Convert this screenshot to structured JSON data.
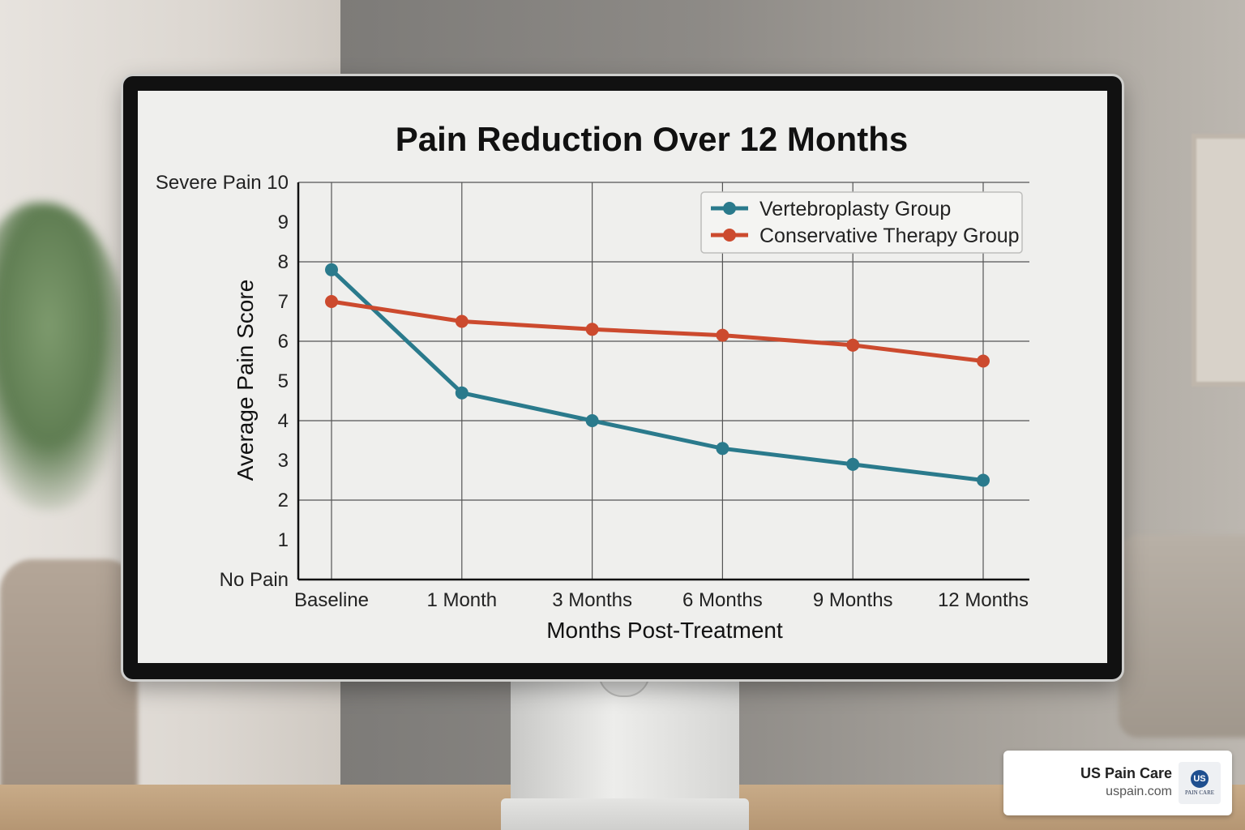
{
  "chart_data": {
    "type": "line",
    "title": "Pain Reduction Over 12 Months",
    "xlabel": "Months Post-Treatment",
    "ylabel": "Average Pain Score",
    "categories": [
      "Baseline",
      "1 Month",
      "3 Months",
      "6 Months",
      "9 Months",
      "12 Months"
    ],
    "ylim": [
      0,
      10
    ],
    "yticks": [
      {
        "value": 0,
        "label": "No Pain"
      },
      {
        "value": 1,
        "label": "1"
      },
      {
        "value": 2,
        "label": "2"
      },
      {
        "value": 3,
        "label": "3"
      },
      {
        "value": 4,
        "label": "4"
      },
      {
        "value": 5,
        "label": "5"
      },
      {
        "value": 6,
        "label": "6"
      },
      {
        "value": 7,
        "label": "7"
      },
      {
        "value": 8,
        "label": "8"
      },
      {
        "value": 9,
        "label": "9"
      },
      {
        "value": 10,
        "label": "Severe Pain 10"
      }
    ],
    "grid": true,
    "legend_position": "top-right",
    "series": [
      {
        "name": "Vertebroplasty Group",
        "color": "#2a7a8c",
        "values": [
          7.8,
          4.7,
          4.0,
          3.3,
          2.9,
          2.5
        ]
      },
      {
        "name": "Conservative Therapy Group",
        "color": "#cc4a2e",
        "values": [
          7.0,
          6.5,
          6.3,
          6.15,
          5.9,
          5.5
        ]
      }
    ]
  },
  "brand": {
    "name": "US Pain Care",
    "url": "uspain.com",
    "logo_text": "PAIN CARE"
  }
}
